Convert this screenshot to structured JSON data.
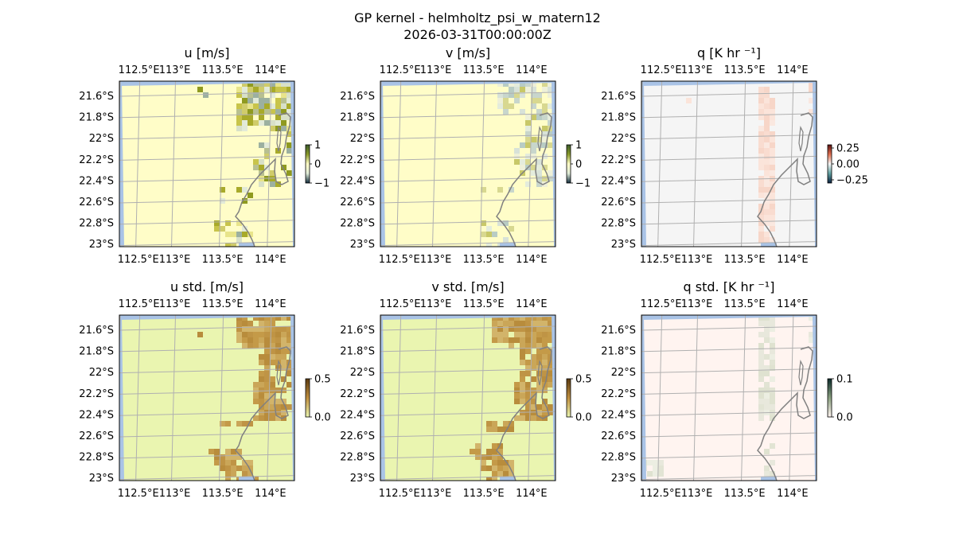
{
  "figure": {
    "title": "GP kernel - helmholtz_psi_w_matern12",
    "subtitle": "2026-03-31T00:00:00Z"
  },
  "colors": {
    "ocean": "#a9c3e6",
    "grid": "#b0b0b0",
    "coast": "#808080"
  },
  "chart_data": [
    {
      "type": "heatmap",
      "title": "u [m/s]",
      "field": "u",
      "lon_ticks": [
        "112.5°E",
        "113°E",
        "113.5°E",
        "114°E"
      ],
      "lat_ticks": [
        "21.6°S",
        "21.8°S",
        "22°S",
        "22.2°S",
        "22.4°S",
        "22.6°S",
        "22.8°S",
        "23°S"
      ],
      "lon_range": [
        112.45,
        114.2
      ],
      "lat_range": [
        -23.05,
        -21.47
      ],
      "background_color": "#fffdc8",
      "colorbar": {
        "ticks": [
          "1",
          "0",
          "−1"
        ],
        "range": [
          -1,
          1
        ],
        "colors": [
          "#3a5a2a",
          "#8a9a2a",
          "#fffdc8",
          "#e0ecd8",
          "#0f2a3a"
        ]
      },
      "colors": [
        "#c8c44a",
        "#a8aa2a",
        "#8f9a20",
        "#d0cc6a",
        "#b8c090",
        "#d8e0c8",
        "#e2ead8",
        "#9cb0a0",
        "#e8e48a"
      ]
    },
    {
      "type": "heatmap",
      "title": "v [m/s]",
      "field": "v",
      "lon_ticks": [
        "112.5°E",
        "113°E",
        "113.5°E",
        "114°E"
      ],
      "lat_ticks": [
        "21.6°S",
        "21.8°S",
        "22°S",
        "22.2°S",
        "22.4°S",
        "22.6°S",
        "22.8°S",
        "23°S"
      ],
      "lon_range": [
        112.45,
        114.2
      ],
      "lat_range": [
        -23.05,
        -21.47
      ],
      "background_color": "#fffdc8",
      "colorbar": {
        "ticks": [
          "1",
          "0",
          "−1"
        ],
        "range": [
          -1,
          1
        ],
        "colors": [
          "#3a5a2a",
          "#8a9a2a",
          "#fffdc8",
          "#e0ecd8",
          "#0f2a3a"
        ]
      },
      "colors": [
        "#d8e2d8",
        "#c8d6cc",
        "#e4ecdc",
        "#b8ccc4",
        "#d8d890",
        "#c8c868",
        "#eef0d8"
      ]
    },
    {
      "type": "heatmap",
      "title": "q [K hr ⁻¹]",
      "field": "q",
      "lon_ticks": [
        "112.5°E",
        "113°E",
        "113.5°E",
        "114°E"
      ],
      "lat_ticks": [
        "21.6°S",
        "21.8°S",
        "22°S",
        "22.2°S",
        "22.4°S",
        "22.6°S",
        "22.8°S",
        "23°S"
      ],
      "lon_range": [
        112.45,
        114.2
      ],
      "lat_range": [
        -23.05,
        -21.47
      ],
      "background_color": "#f5f5f5",
      "colorbar": {
        "ticks": [
          "0.25",
          "0.00",
          "−0.25"
        ],
        "range": [
          -0.3,
          0.3
        ],
        "colors": [
          "#5a1010",
          "#e07050",
          "#f5f5f5",
          "#60a0a0",
          "#0a2040"
        ]
      },
      "colors": [
        "#fbe4da",
        "#f9dcd0",
        "#fae8e0",
        "#f7d6c8"
      ]
    },
    {
      "type": "heatmap",
      "title": "u std. [m/s]",
      "field": "u_std",
      "lon_ticks": [
        "112.5°E",
        "113°E",
        "113.5°E",
        "114°E"
      ],
      "lat_ticks": [
        "21.6°S",
        "21.8°S",
        "22°S",
        "22.2°S",
        "22.4°S",
        "22.6°S",
        "22.8°S",
        "23°S"
      ],
      "lon_range": [
        112.45,
        114.2
      ],
      "lat_range": [
        -23.05,
        -21.47
      ],
      "background_color": "#eaf5b0",
      "colorbar": {
        "ticks": [
          "0.5",
          "0.0"
        ],
        "range": [
          0,
          0.5
        ],
        "colors": [
          "#5a3a10",
          "#c09040",
          "#eaf5b0"
        ]
      },
      "colors": [
        "#c49a48",
        "#b88c3c",
        "#caa658",
        "#bf9445",
        "#d2b46a"
      ]
    },
    {
      "type": "heatmap",
      "title": "v std. [m/s]",
      "field": "v_std",
      "lon_ticks": [
        "112.5°E",
        "113°E",
        "113.5°E",
        "114°E"
      ],
      "lat_ticks": [
        "21.6°S",
        "21.8°S",
        "22°S",
        "22.2°S",
        "22.4°S",
        "22.6°S",
        "22.8°S",
        "23°S"
      ],
      "lon_range": [
        112.45,
        114.2
      ],
      "lat_range": [
        -23.05,
        -21.47
      ],
      "background_color": "#eaf5b0",
      "colorbar": {
        "ticks": [
          "0.5",
          "0.0"
        ],
        "range": [
          0,
          0.5
        ],
        "colors": [
          "#5a3a10",
          "#c09040",
          "#eaf5b0"
        ]
      },
      "colors": [
        "#c49a48",
        "#b88c3c",
        "#caa658",
        "#bf9445",
        "#d2b46a"
      ]
    },
    {
      "type": "heatmap",
      "title": "q std. [K hr ⁻¹]",
      "field": "q_std",
      "lon_ticks": [
        "112.5°E",
        "113°E",
        "113.5°E",
        "114°E"
      ],
      "lat_ticks": [
        "21.6°S",
        "21.8°S",
        "22°S",
        "22.2°S",
        "22.4°S",
        "22.6°S",
        "22.8°S",
        "23°S"
      ],
      "lon_range": [
        112.45,
        114.2
      ],
      "lat_range": [
        -23.05,
        -21.47
      ],
      "background_color": "#fff4f0",
      "colorbar": {
        "ticks": [
          "0.1",
          "0.0"
        ],
        "range": [
          0,
          0.1
        ],
        "colors": [
          "#0a2a2a",
          "#8aa080",
          "#fff4f0"
        ]
      },
      "colors": [
        "#e8e8dc",
        "#e2e4d4",
        "#eceee2",
        "#dfe2d0"
      ]
    }
  ]
}
